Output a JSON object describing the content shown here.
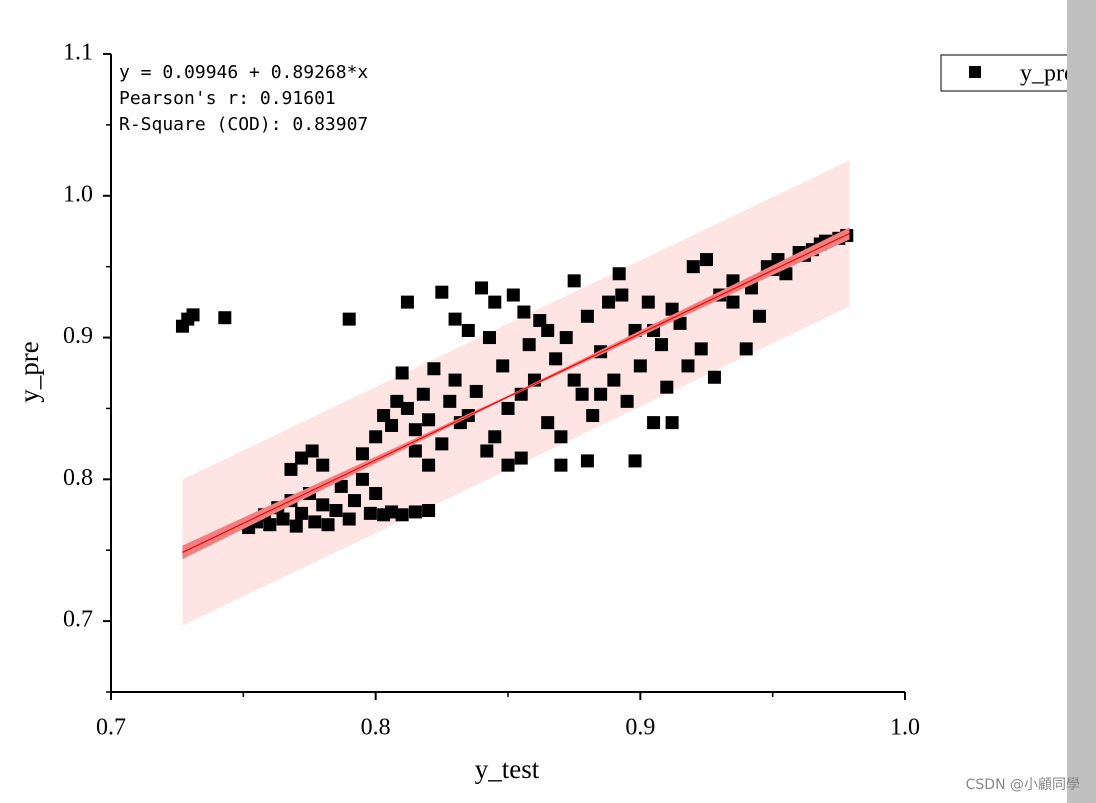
{
  "chart_data": {
    "type": "scatter",
    "xlabel": "y_test",
    "ylabel": "y_pre",
    "annotations": [
      "y = 0.09946 + 0.89268*x",
      "Pearson's r: 0.91601",
      "R-Square (COD): 0.83907"
    ],
    "xlim": [
      0.7,
      1.0
    ],
    "ylim": [
      0.65,
      1.1
    ],
    "xticks": [
      {
        "value": 0.7,
        "label": "0.7"
      },
      {
        "value": 0.8,
        "label": "0.8"
      },
      {
        "value": 0.9,
        "label": "0.9"
      },
      {
        "value": 1.0,
        "label": "1.0"
      }
    ],
    "yticks": [
      {
        "value": 0.7,
        "label": "0.7"
      },
      {
        "value": 0.8,
        "label": "0.8"
      },
      {
        "value": 0.9,
        "label": "0.9"
      },
      {
        "value": 1.0,
        "label": "1.0"
      },
      {
        "value": 1.1,
        "label": "1.1"
      }
    ],
    "xminor": [
      0.75,
      0.85,
      0.95
    ],
    "yminor": [
      0.65,
      0.75,
      0.85,
      0.95,
      1.05
    ],
    "series": [
      {
        "name": "y_pre",
        "color": "#000000",
        "x": [
          0.727,
          0.729,
          0.731,
          0.743,
          0.79,
          0.752,
          0.755,
          0.758,
          0.76,
          0.763,
          0.765,
          0.768,
          0.77,
          0.772,
          0.775,
          0.777,
          0.78,
          0.782,
          0.785,
          0.787,
          0.79,
          0.792,
          0.795,
          0.798,
          0.8,
          0.803,
          0.806,
          0.81,
          0.815,
          0.82,
          0.768,
          0.772,
          0.776,
          0.78,
          0.795,
          0.8,
          0.803,
          0.806,
          0.808,
          0.81,
          0.812,
          0.815,
          0.818,
          0.82,
          0.822,
          0.825,
          0.828,
          0.83,
          0.832,
          0.835,
          0.838,
          0.84,
          0.842,
          0.845,
          0.848,
          0.85,
          0.852,
          0.855,
          0.858,
          0.86,
          0.862,
          0.865,
          0.868,
          0.87,
          0.872,
          0.875,
          0.878,
          0.88,
          0.882,
          0.885,
          0.888,
          0.89,
          0.892,
          0.895,
          0.898,
          0.9,
          0.903,
          0.905,
          0.908,
          0.91,
          0.912,
          0.915,
          0.918,
          0.92,
          0.923,
          0.925,
          0.928,
          0.93,
          0.935,
          0.94,
          0.945,
          0.948,
          0.952,
          0.955,
          0.96,
          0.965,
          0.97,
          0.975,
          0.978,
          0.898,
          0.88,
          0.87,
          0.85,
          0.82,
          0.812,
          0.825,
          0.83,
          0.843,
          0.856,
          0.893,
          0.865,
          0.905,
          0.912,
          0.935,
          0.942,
          0.95,
          0.962,
          0.968,
          0.855,
          0.875,
          0.885,
          0.815,
          0.835,
          0.845
        ],
        "values": [
          0.908,
          0.913,
          0.916,
          0.914,
          0.913,
          0.766,
          0.77,
          0.775,
          0.768,
          0.78,
          0.772,
          0.785,
          0.767,
          0.776,
          0.79,
          0.77,
          0.782,
          0.768,
          0.778,
          0.795,
          0.772,
          0.785,
          0.8,
          0.776,
          0.79,
          0.775,
          0.777,
          0.775,
          0.777,
          0.778,
          0.807,
          0.815,
          0.82,
          0.81,
          0.818,
          0.83,
          0.845,
          0.838,
          0.855,
          0.875,
          0.85,
          0.835,
          0.86,
          0.842,
          0.878,
          0.825,
          0.855,
          0.87,
          0.84,
          0.905,
          0.862,
          0.935,
          0.82,
          0.925,
          0.88,
          0.85,
          0.93,
          0.815,
          0.895,
          0.87,
          0.912,
          0.84,
          0.885,
          0.83,
          0.9,
          0.94,
          0.86,
          0.915,
          0.845,
          0.89,
          0.925,
          0.87,
          0.945,
          0.855,
          0.905,
          0.88,
          0.925,
          0.84,
          0.895,
          0.865,
          0.84,
          0.91,
          0.88,
          0.95,
          0.892,
          0.955,
          0.872,
          0.93,
          0.94,
          0.892,
          0.915,
          0.95,
          0.955,
          0.945,
          0.96,
          0.962,
          0.968,
          0.97,
          0.972,
          0.813,
          0.813,
          0.81,
          0.81,
          0.81,
          0.925,
          0.932,
          0.913,
          0.9,
          0.918,
          0.93,
          0.905,
          0.905,
          0.92,
          0.925,
          0.935,
          0.948,
          0.958,
          0.966,
          0.86,
          0.87,
          0.86,
          0.82,
          0.845,
          0.83
        ]
      }
    ],
    "fit": {
      "color": "#ff0000",
      "x": [
        0.727,
        0.979
      ],
      "values": [
        0.74844,
        0.97339
      ]
    },
    "confidence_band": {
      "color": "#f08080",
      "x": [
        0.727,
        0.85,
        0.979
      ],
      "lower": [
        0.7437,
        0.8575,
        0.9692
      ],
      "upper": [
        0.7532,
        0.859,
        0.9776
      ]
    },
    "prediction_band": {
      "color": "#ffe4e4",
      "x": [
        0.727,
        0.979
      ],
      "lower": [
        0.6969,
        0.9219
      ],
      "upper": [
        0.7999,
        1.0249
      ]
    },
    "watermark": "CSDN @小顧同學"
  }
}
